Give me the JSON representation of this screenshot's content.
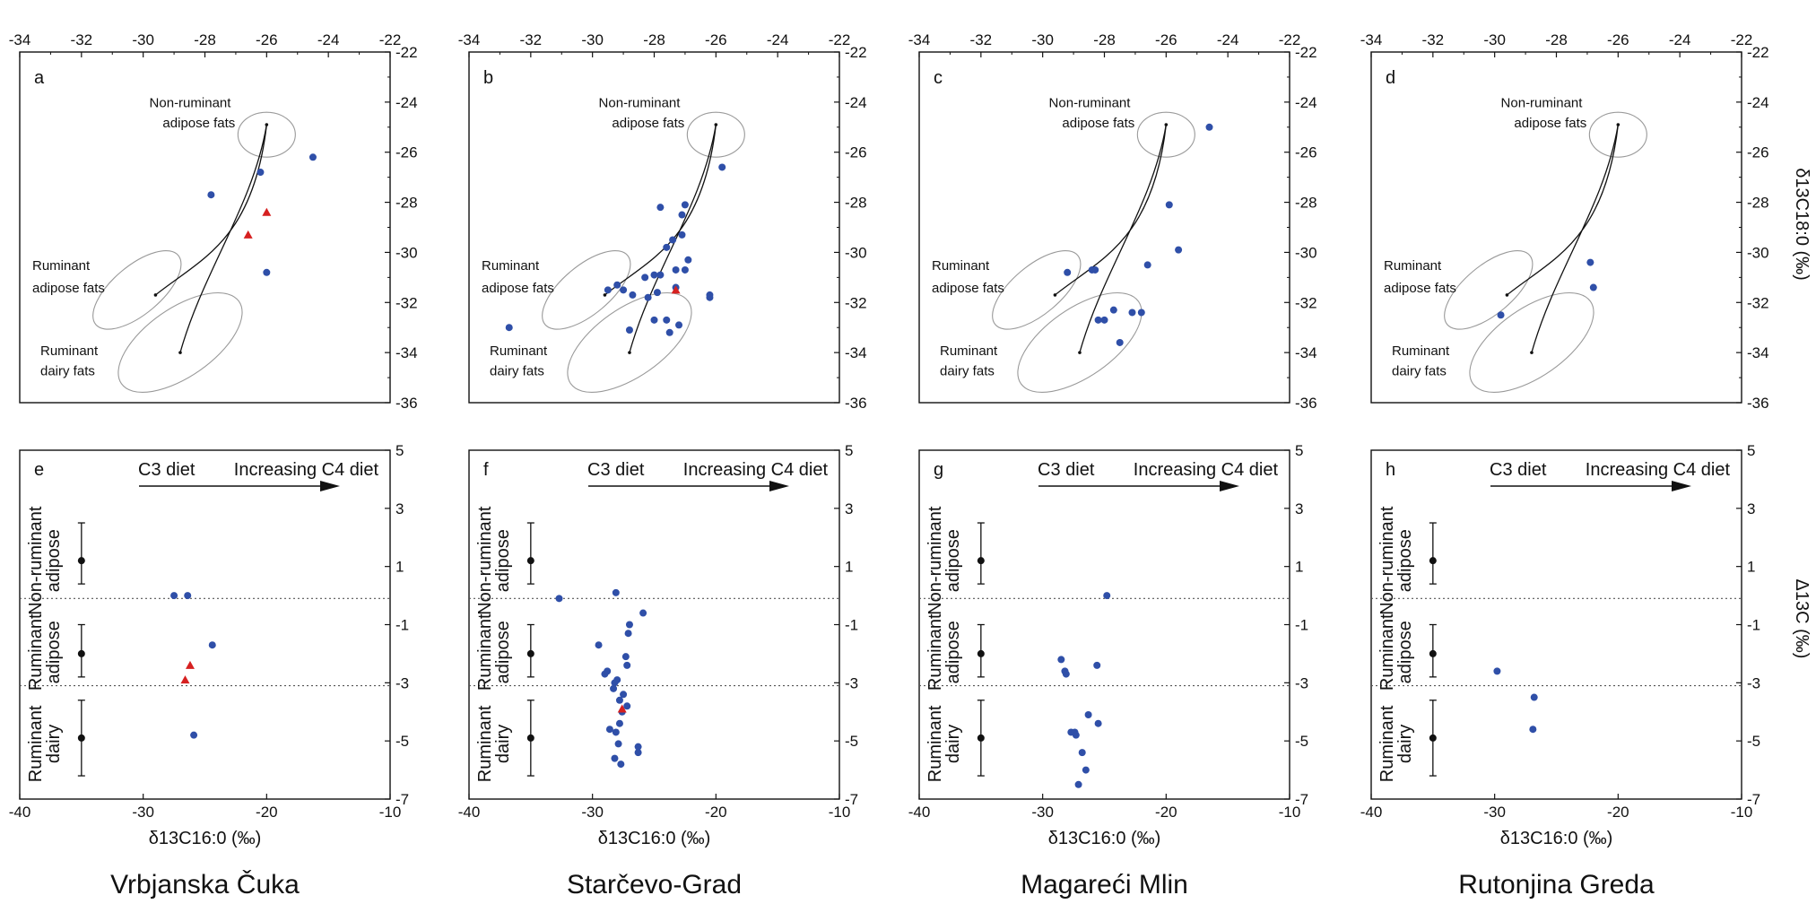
{
  "figure": {
    "top_x_ticks": [
      -34,
      -32,
      -30,
      -28,
      -26,
      -24,
      -22
    ],
    "top_y_ticks": [
      -22,
      -24,
      -26,
      -28,
      -30,
      -32,
      -34,
      -36
    ],
    "top_right_axis_label": "δ13C18:0 (‰)",
    "bottom_x_ticks": [
      -40,
      -30,
      -20,
      -10
    ],
    "bottom_y_ticks": [
      5,
      3,
      1,
      -1,
      -3,
      -5,
      -7
    ],
    "bottom_x_axis_label": "δ13C16:0 (‰)",
    "bottom_right_axis_label": "Δ13C (‰)",
    "ellipse_labels": {
      "nonruminant": [
        "Non-ruminant",
        "adipose fats"
      ],
      "ruminant_adipose": [
        "Ruminant",
        "adipose fats"
      ],
      "ruminant_dairy": [
        "Ruminant",
        "dairy fats"
      ]
    },
    "diet_left": "C3 diet",
    "diet_right": "Increasing C4 diet",
    "ref_group_labels": {
      "nonruminant": [
        "Non-ruminant",
        "adipose"
      ],
      "ruminant_adipose": [
        "Ruminant",
        "adipose"
      ],
      "ruminant_dairy": [
        "Ruminant",
        "dairy"
      ]
    },
    "colors": {
      "circle": "#2f4fa8",
      "triangle": "#d62020",
      "axis": "#111111",
      "ellipse": "#888888"
    }
  },
  "chart_data": [
    {
      "panel": "a",
      "site": "Vrbjanska Čuka",
      "type": "scatter",
      "xlim": [
        -34,
        -22
      ],
      "ylim": [
        -36,
        -22
      ],
      "circles": [
        [
          -24.5,
          -26.2
        ],
        [
          -26.2,
          -26.8
        ],
        [
          -27.8,
          -27.7
        ],
        [
          -26.0,
          -30.8
        ]
      ],
      "triangles": [
        [
          -26.0,
          -28.4
        ],
        [
          -26.6,
          -29.3
        ]
      ]
    },
    {
      "panel": "b",
      "site": "Starčevo-Grad",
      "type": "scatter",
      "xlim": [
        -34,
        -22
      ],
      "ylim": [
        -36,
        -22
      ],
      "circles": [
        [
          -25.8,
          -26.6
        ],
        [
          -27.0,
          -28.1
        ],
        [
          -27.1,
          -28.5
        ],
        [
          -27.8,
          -28.2
        ],
        [
          -27.4,
          -29.5
        ],
        [
          -27.1,
          -29.3
        ],
        [
          -27.6,
          -29.8
        ],
        [
          -26.9,
          -30.3
        ],
        [
          -27.3,
          -30.7
        ],
        [
          -27.8,
          -30.9
        ],
        [
          -28.0,
          -30.9
        ],
        [
          -28.3,
          -31.0
        ],
        [
          -27.0,
          -30.7
        ],
        [
          -29.2,
          -31.3
        ],
        [
          -29.5,
          -31.5
        ],
        [
          -29.0,
          -31.5
        ],
        [
          -28.7,
          -31.7
        ],
        [
          -27.3,
          -31.4
        ],
        [
          -27.9,
          -31.6
        ],
        [
          -28.2,
          -31.8
        ],
        [
          -26.2,
          -31.7
        ],
        [
          -26.2,
          -31.8
        ],
        [
          -27.6,
          -32.7
        ],
        [
          -28.0,
          -32.7
        ],
        [
          -27.2,
          -32.9
        ],
        [
          -27.5,
          -33.2
        ],
        [
          -28.8,
          -33.1
        ],
        [
          -32.7,
          -33.0
        ]
      ],
      "triangles": [
        [
          -27.3,
          -31.5
        ]
      ]
    },
    {
      "panel": "c",
      "site": "Magareći Mlin",
      "type": "scatter",
      "xlim": [
        -34,
        -22
      ],
      "ylim": [
        -36,
        -22
      ],
      "circles": [
        [
          -24.6,
          -25.0
        ],
        [
          -25.9,
          -28.1
        ],
        [
          -25.6,
          -29.9
        ],
        [
          -26.6,
          -30.5
        ],
        [
          -28.3,
          -30.7
        ],
        [
          -28.4,
          -30.7
        ],
        [
          -29.2,
          -30.8
        ],
        [
          -26.8,
          -32.4
        ],
        [
          -27.1,
          -32.4
        ],
        [
          -27.7,
          -32.3
        ],
        [
          -28.0,
          -32.7
        ],
        [
          -28.2,
          -32.7
        ],
        [
          -27.5,
          -33.6
        ]
      ],
      "triangles": []
    },
    {
      "panel": "d",
      "site": "Rutonjina Greda",
      "type": "scatter",
      "xlim": [
        -34,
        -22
      ],
      "ylim": [
        -36,
        -22
      ],
      "circles": [
        [
          -26.9,
          -30.4
        ],
        [
          -26.8,
          -31.4
        ],
        [
          -29.8,
          -32.5
        ]
      ],
      "triangles": []
    },
    {
      "panel": "e",
      "type": "scatter",
      "xlim": [
        -40,
        -10
      ],
      "ylim": [
        -7,
        5
      ],
      "circles": [
        [
          -27.5,
          0.0
        ],
        [
          -26.4,
          0.0
        ],
        [
          -24.4,
          -1.7
        ],
        [
          -25.9,
          -4.8
        ]
      ],
      "triangles": [
        [
          -26.2,
          -2.4
        ],
        [
          -26.6,
          -2.9
        ]
      ]
    },
    {
      "panel": "f",
      "type": "scatter",
      "xlim": [
        -40,
        -10
      ],
      "ylim": [
        -7,
        5
      ],
      "circles": [
        [
          -32.7,
          -0.1
        ],
        [
          -28.1,
          0.1
        ],
        [
          -25.9,
          -0.6
        ],
        [
          -27.0,
          -1.0
        ],
        [
          -27.1,
          -1.3
        ],
        [
          -29.5,
          -1.7
        ],
        [
          -27.3,
          -2.1
        ],
        [
          -27.2,
          -2.4
        ],
        [
          -28.8,
          -2.6
        ],
        [
          -29.0,
          -2.7
        ],
        [
          -28.0,
          -2.9
        ],
        [
          -28.2,
          -3.0
        ],
        [
          -28.3,
          -3.2
        ],
        [
          -27.5,
          -3.4
        ],
        [
          -27.8,
          -3.6
        ],
        [
          -27.2,
          -3.8
        ],
        [
          -27.6,
          -4.0
        ],
        [
          -27.8,
          -4.4
        ],
        [
          -28.6,
          -4.6
        ],
        [
          -28.1,
          -4.7
        ],
        [
          -27.9,
          -5.1
        ],
        [
          -26.3,
          -5.2
        ],
        [
          -26.3,
          -5.4
        ],
        [
          -28.2,
          -5.6
        ],
        [
          -27.7,
          -5.8
        ]
      ],
      "triangles": [
        [
          -27.6,
          -3.9
        ]
      ]
    },
    {
      "panel": "g",
      "type": "scatter",
      "xlim": [
        -40,
        -10
      ],
      "ylim": [
        -7,
        5
      ],
      "circles": [
        [
          -24.8,
          0.0
        ],
        [
          -28.5,
          -2.2
        ],
        [
          -28.2,
          -2.6
        ],
        [
          -28.1,
          -2.7
        ],
        [
          -25.6,
          -2.4
        ],
        [
          -26.3,
          -4.1
        ],
        [
          -25.5,
          -4.4
        ],
        [
          -27.7,
          -4.7
        ],
        [
          -27.4,
          -4.7
        ],
        [
          -27.3,
          -4.8
        ],
        [
          -26.8,
          -5.4
        ],
        [
          -26.5,
          -6.0
        ],
        [
          -27.1,
          -6.5
        ]
      ],
      "triangles": []
    },
    {
      "panel": "h",
      "type": "scatter",
      "xlim": [
        -40,
        -10
      ],
      "ylim": [
        -7,
        5
      ],
      "circles": [
        [
          -29.8,
          -2.6
        ],
        [
          -26.8,
          -3.5
        ],
        [
          -26.9,
          -4.6
        ]
      ],
      "triangles": []
    }
  ]
}
